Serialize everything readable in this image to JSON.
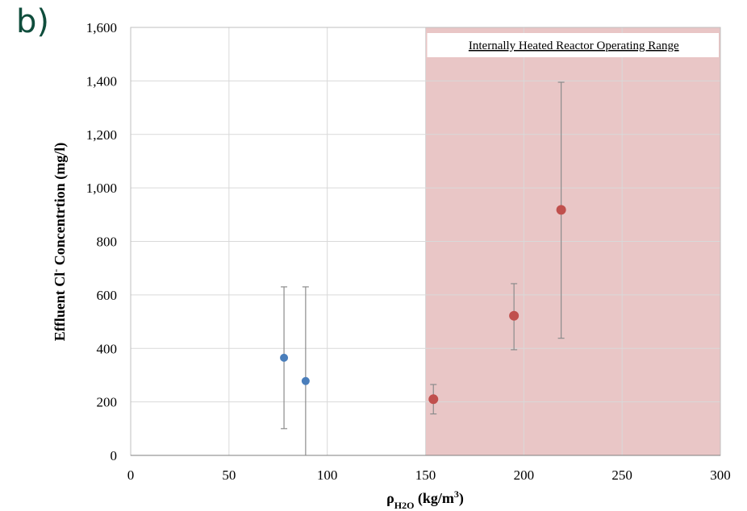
{
  "panel_label": "b)",
  "colors": {
    "series_blue": "#4a7ebb",
    "series_red": "#c0504d",
    "region_fill": "#e9c6c6",
    "grid": "#d9d9d9",
    "error_bar": "#8c8c8c"
  },
  "chart_data": {
    "type": "scatter",
    "title": "",
    "xlabel": "ρH2O (kg/m³)",
    "ylabel": "Effluent Cl- Concentrtion (mg/l)",
    "xlim": [
      0,
      300
    ],
    "ylim": [
      0,
      1600
    ],
    "x_ticks": [
      0,
      50,
      100,
      150,
      200,
      250,
      300
    ],
    "y_ticks": [
      0,
      200,
      400,
      600,
      800,
      1000,
      1200,
      1400,
      1600
    ],
    "x_tick_labels": [
      "0",
      "50",
      "100",
      "150",
      "200",
      "250",
      "300"
    ],
    "y_tick_labels": [
      "0",
      "200",
      "400",
      "600",
      "800",
      "1,000",
      "1,200",
      "1,400",
      "1,600"
    ],
    "grid": true,
    "legend": "none",
    "shaded_region": {
      "x_start": 150,
      "x_end": 300,
      "label": "Internally Heated Reactor Operating Range"
    },
    "series": [
      {
        "color": "#4a7ebb",
        "points": [
          {
            "x": 78,
            "y": 365,
            "err_low": 100,
            "err_high": 630
          },
          {
            "x": 89,
            "y": 278,
            "err_low": 0,
            "err_high": 630
          }
        ]
      },
      {
        "color": "#c0504d",
        "points": [
          {
            "x": 154,
            "y": 210,
            "err_low": 155,
            "err_high": 265
          },
          {
            "x": 195,
            "y": 522,
            "err_low": 395,
            "err_high": 642
          },
          {
            "x": 219,
            "y": 918,
            "err_low": 438,
            "err_high": 1395
          }
        ]
      }
    ]
  }
}
